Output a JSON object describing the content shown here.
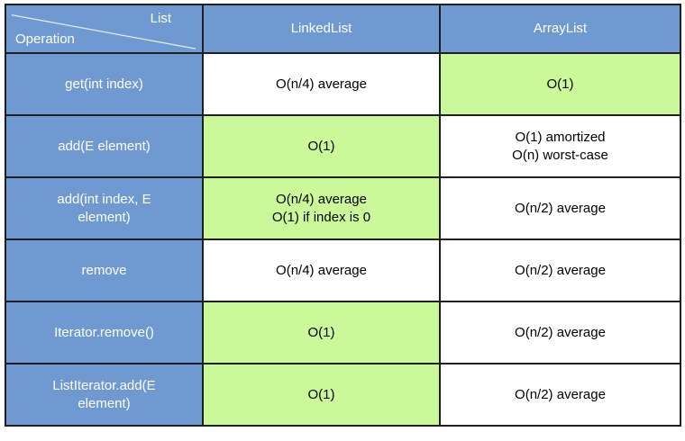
{
  "colors": {
    "header_blue": "#6f9ad1",
    "highlight_green": "#cbf899",
    "border": "#1f1f1f",
    "header_text": "#ffffff",
    "cell_text": "#000000"
  },
  "table": {
    "corner": {
      "top_label": "List",
      "bottom_label": "Operation"
    },
    "columns": [
      "LinkedList",
      "ArrayList"
    ],
    "rows": [
      {
        "operation": {
          "lines": [
            "get(int index)"
          ]
        },
        "linkedlist": {
          "lines": [
            "O(n/4) average"
          ],
          "highlight": false
        },
        "arraylist": {
          "lines": [
            "O(1)"
          ],
          "highlight": true
        }
      },
      {
        "operation": {
          "lines": [
            "add(E element)"
          ]
        },
        "linkedlist": {
          "lines": [
            "O(1)"
          ],
          "highlight": true
        },
        "arraylist": {
          "lines": [
            "O(1) amortized",
            "O(n) worst-case"
          ],
          "highlight": false
        }
      },
      {
        "operation": {
          "lines": [
            "add(int index, E",
            "element)"
          ]
        },
        "linkedlist": {
          "lines": [
            "O(n/4) average",
            "O(1) if index is 0"
          ],
          "highlight": true
        },
        "arraylist": {
          "lines": [
            "O(n/2) average"
          ],
          "highlight": false
        }
      },
      {
        "operation": {
          "lines": [
            "remove"
          ]
        },
        "linkedlist": {
          "lines": [
            "O(n/4) average"
          ],
          "highlight": false
        },
        "arraylist": {
          "lines": [
            "O(n/2) average"
          ],
          "highlight": false
        }
      },
      {
        "operation": {
          "lines": [
            "Iterator.remove()"
          ]
        },
        "linkedlist": {
          "lines": [
            "O(1)"
          ],
          "highlight": true
        },
        "arraylist": {
          "lines": [
            "O(n/2) average"
          ],
          "highlight": false
        }
      },
      {
        "operation": {
          "lines": [
            "ListIterator.add(E",
            "element)"
          ]
        },
        "linkedlist": {
          "lines": [
            "O(1)"
          ],
          "highlight": true
        },
        "arraylist": {
          "lines": [
            "O(n/2) average"
          ],
          "highlight": false
        }
      }
    ]
  }
}
